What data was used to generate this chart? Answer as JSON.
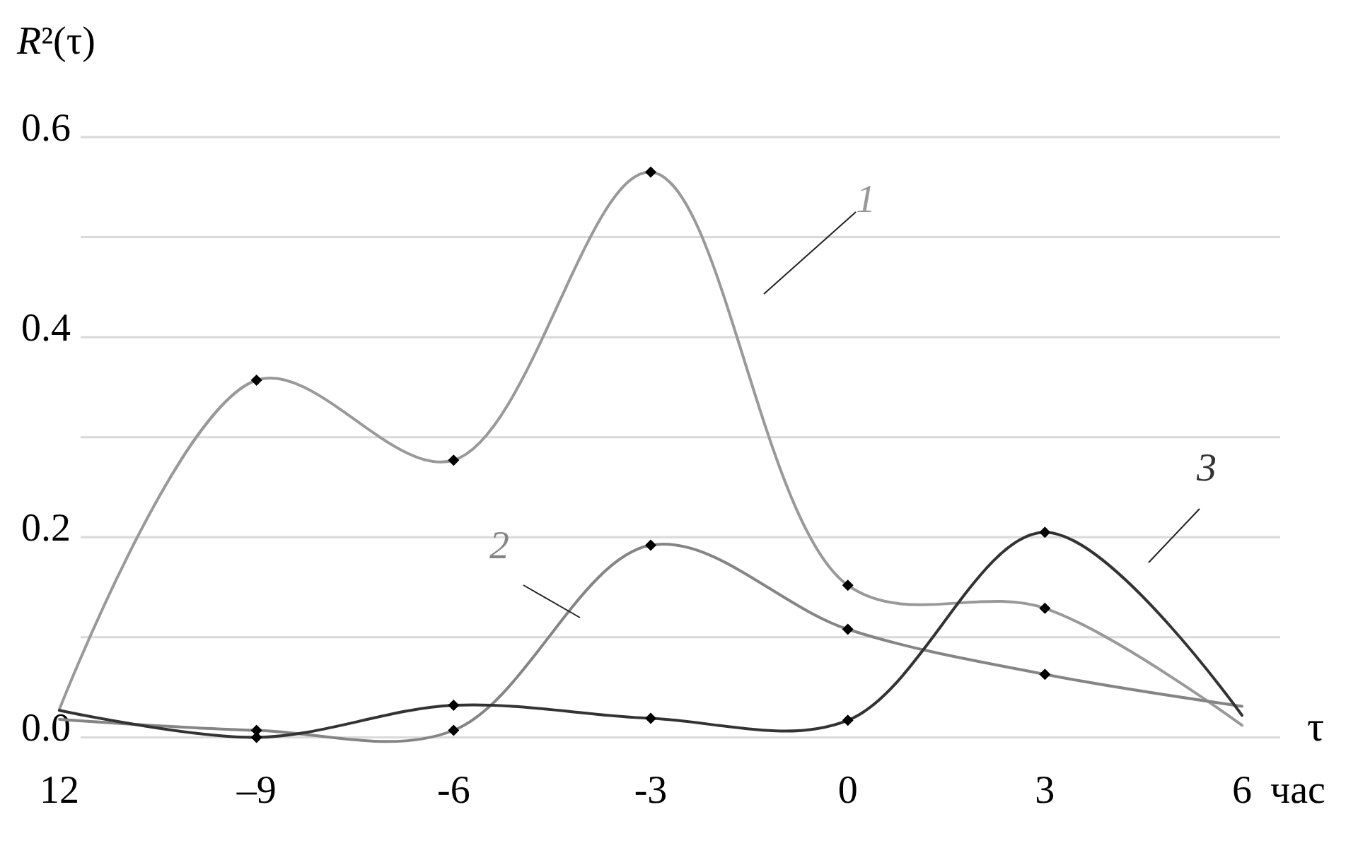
{
  "chart_data": {
    "type": "line",
    "ylabel": "R²(τ)",
    "xlabel": "τ",
    "annotations": [
      "час"
    ],
    "categories": [
      "12",
      "–9",
      "-6",
      "-3",
      "0",
      "3",
      "6"
    ],
    "ylim": [
      0,
      0.6
    ],
    "yticks": [
      {
        "value": 0,
        "label": "0.0"
      },
      {
        "value": 0.1,
        "label": null
      },
      {
        "value": 0.2,
        "label": "0.2"
      },
      {
        "value": 0.3,
        "label": null
      },
      {
        "value": 0.4,
        "label": "0.4"
      },
      {
        "value": 0.5,
        "label": null
      },
      {
        "value": 0.6,
        "label": "0.6"
      }
    ],
    "grid": "y",
    "marker": "diamond",
    "line_style": "solid",
    "series": [
      {
        "name": "1",
        "color": "#999999",
        "values": [
          0.028,
          0.357,
          0.277,
          0.565,
          0.152,
          0.129,
          0.012
        ]
      },
      {
        "name": "2",
        "color": "#858585",
        "values": [
          0.018,
          0.007,
          0.007,
          0.192,
          0.108,
          0.063,
          0.031
        ]
      },
      {
        "name": "3",
        "color": "#333333",
        "values": [
          0.027,
          0,
          0.032,
          0.019,
          0.017,
          0.205,
          0.022
        ]
      }
    ]
  }
}
